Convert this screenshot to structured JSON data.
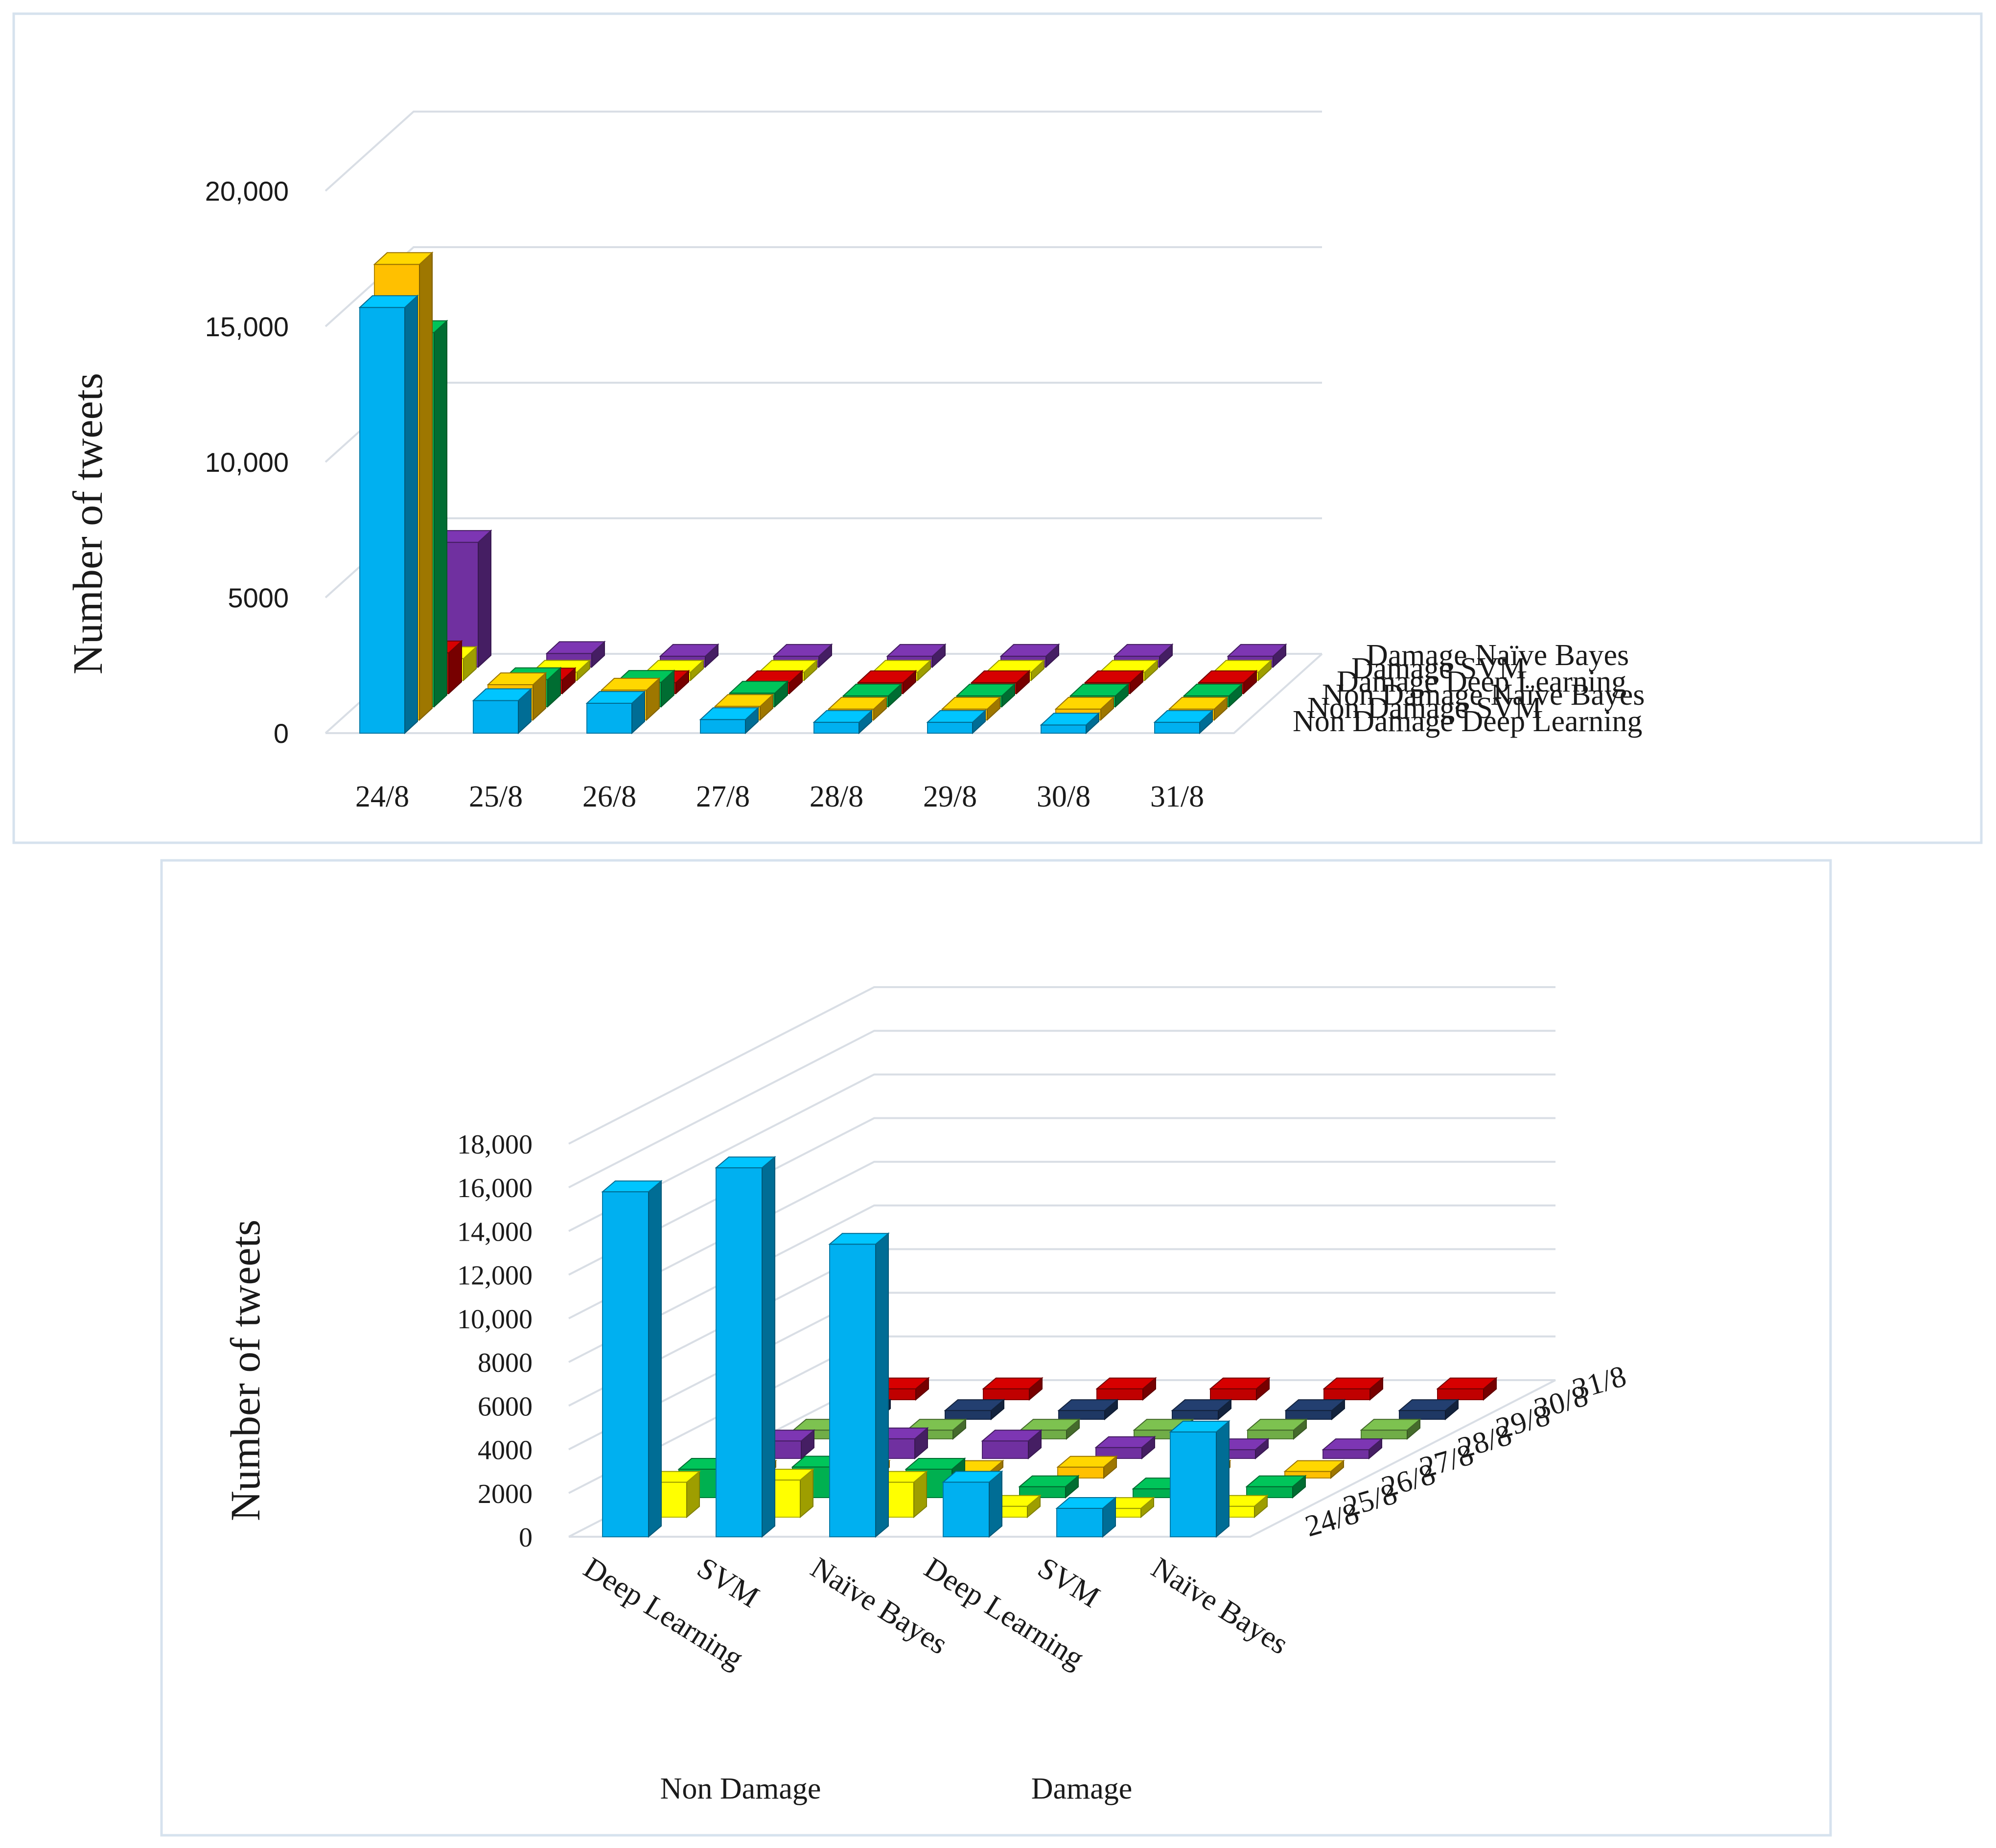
{
  "chart_data": [
    {
      "type": "bar",
      "subtype": "3d-column",
      "ylabel": "Number of tweets",
      "ylim": [
        0,
        20000
      ],
      "yticks": [
        "0",
        "5000",
        "10,000",
        "15,000",
        "20,000"
      ],
      "categories": [
        "24/8",
        "25/8",
        "26/8",
        "27/8",
        "28/8",
        "29/8",
        "30/8",
        "31/8"
      ],
      "series": [
        {
          "name": "Non Damage Deep Learning",
          "color": "#00b0f0",
          "values": [
            15700,
            1200,
            1100,
            500,
            400,
            400,
            300,
            400
          ]
        },
        {
          "name": "Non Damage SVM",
          "color": "#ffc000",
          "values": [
            16800,
            1300,
            1100,
            500,
            400,
            400,
            400,
            400
          ]
        },
        {
          "name": "Non Damage Naïve Bayes",
          "color": "#00b050",
          "values": [
            13800,
            1000,
            900,
            500,
            400,
            400,
            400,
            400
          ]
        },
        {
          "name": "Damage Deep Learning",
          "color": "#c00000",
          "values": [
            1500,
            500,
            400,
            400,
            400,
            400,
            400,
            400
          ]
        },
        {
          "name": "Damage SVM",
          "color": "#ffff00",
          "values": [
            800,
            300,
            300,
            300,
            300,
            300,
            300,
            300
          ]
        },
        {
          "name": "Damage Naïve Bayes",
          "color": "#7030a0",
          "values": [
            4600,
            500,
            400,
            400,
            400,
            400,
            400,
            400
          ]
        }
      ]
    },
    {
      "type": "bar",
      "subtype": "3d-column",
      "ylabel": "Number of tweets",
      "ylim": [
        0,
        18000
      ],
      "yticks": [
        "0",
        "2000",
        "4000",
        "6000",
        "8000",
        "10,000",
        "12,000",
        "14,000",
        "16,000",
        "18,000"
      ],
      "group_labels": [
        "Non Damage",
        "Damage"
      ],
      "categories": [
        "Deep Learning",
        "SVM",
        "Naïve Bayes",
        "Deep Learning",
        "SVM",
        "Naïve Bayes"
      ],
      "series": [
        {
          "name": "24/8",
          "color": "#00b0f0",
          "values": [
            15800,
            16900,
            13400,
            2500,
            1300,
            4800
          ]
        },
        {
          "name": "25/8",
          "color": "#ffff00",
          "values": [
            1600,
            1700,
            1600,
            500,
            400,
            500
          ]
        },
        {
          "name": "26/8",
          "color": "#00b050",
          "values": [
            1300,
            1400,
            1300,
            500,
            400,
            500
          ]
        },
        {
          "name": "27/8",
          "color": "#ffc000",
          "values": [
            300,
            300,
            300,
            500,
            300,
            300
          ]
        },
        {
          "name": "28/8",
          "color": "#7030a0",
          "values": [
            800,
            900,
            800,
            500,
            400,
            400
          ]
        },
        {
          "name": "29/8",
          "color": "#70ad47",
          "values": [
            400,
            400,
            400,
            400,
            400,
            400
          ]
        },
        {
          "name": "30/8",
          "color": "#1f3864",
          "values": [
            400,
            400,
            400,
            400,
            400,
            400
          ]
        },
        {
          "name": "31/8",
          "color": "#c00000",
          "values": [
            500,
            500,
            500,
            500,
            500,
            500
          ]
        }
      ]
    }
  ]
}
